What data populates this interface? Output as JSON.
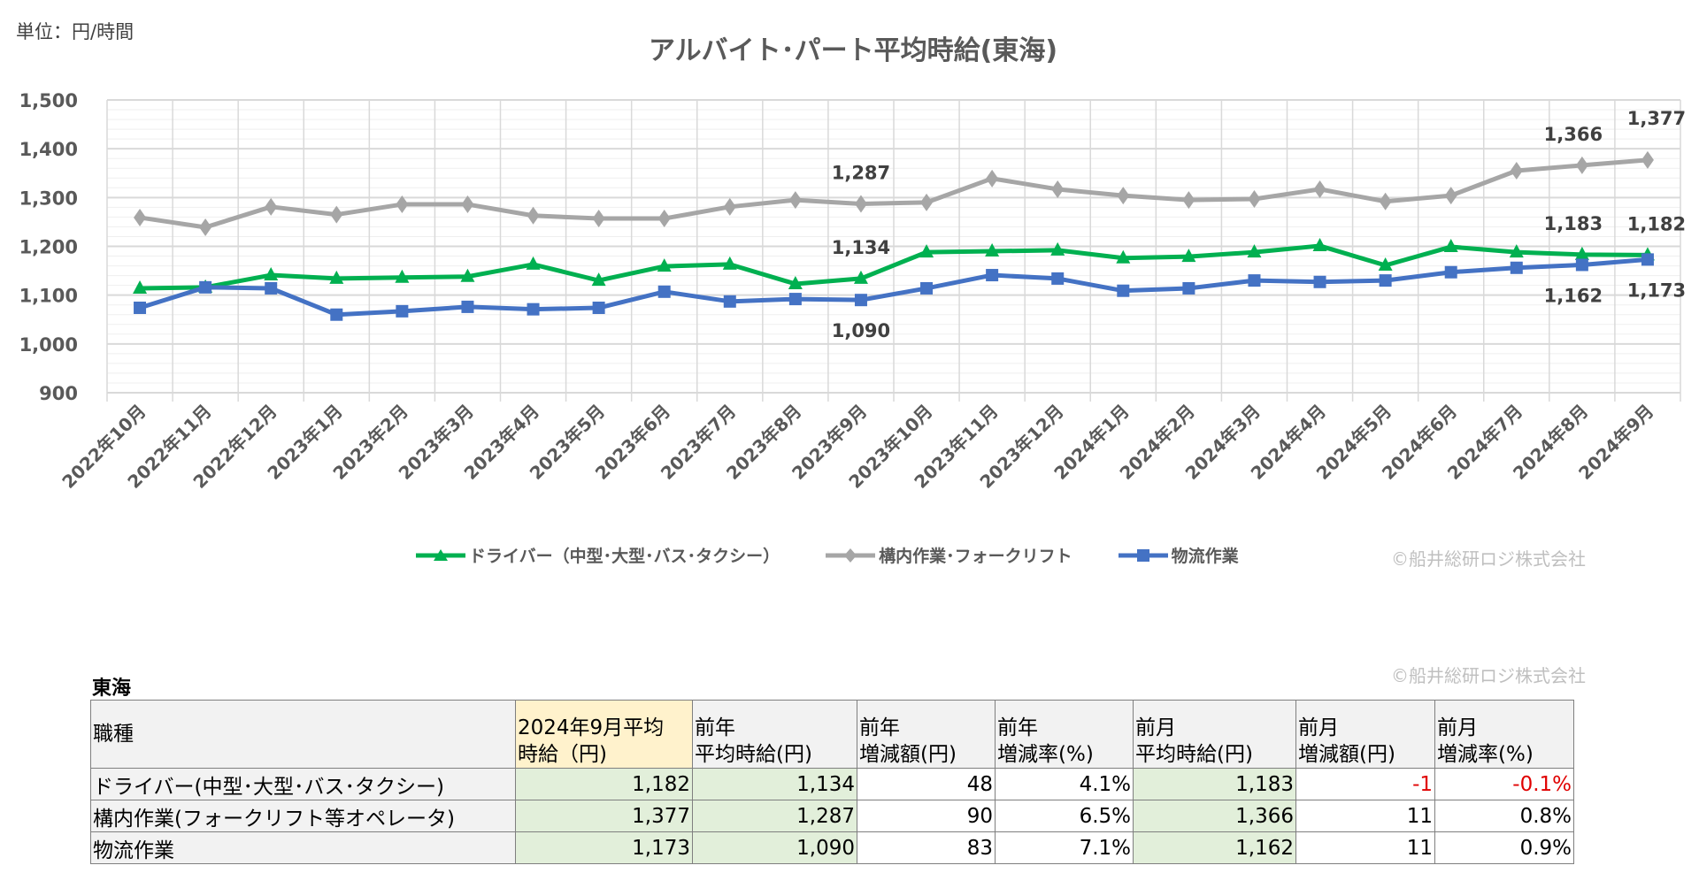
{
  "unit_label": "単位：円/時間",
  "copyright": "©船井総研ロジ株式会社",
  "chart_data": {
    "type": "line",
    "title": "アルバイト･パート平均時給(東海)",
    "ylim": [
      900,
      1500
    ],
    "yticks": [
      "900",
      "1,000",
      "1,100",
      "1,200",
      "1,300",
      "1,400",
      "1,500"
    ],
    "grid": true,
    "legend_position": "bottom",
    "categories": [
      "2022年10月",
      "2022年11月",
      "2022年12月",
      "2023年1月",
      "2023年2月",
      "2023年3月",
      "2023年4月",
      "2023年5月",
      "2023年6月",
      "2023年7月",
      "2023年8月",
      "2023年9月",
      "2023年10月",
      "2023年11月",
      "2023年12月",
      "2024年1月",
      "2024年2月",
      "2024年3月",
      "2024年4月",
      "2024年5月",
      "2024年6月",
      "2024年7月",
      "2024年8月",
      "2024年9月"
    ],
    "series": [
      {
        "name": "ドライバー（中型･大型･バス･タクシー）",
        "color": "#00b050",
        "marker": "triangle",
        "values": [
          1114,
          1116,
          1141,
          1134,
          1136,
          1138,
          1163,
          1130,
          1159,
          1163,
          1123,
          1134,
          1188,
          1190,
          1192,
          1176,
          1179,
          1188,
          1201,
          1161,
          1199,
          1188,
          1183,
          1182
        ],
        "labels": {
          "11": "1,134",
          "22": "1,183",
          "23": "1,182"
        },
        "label_side": "above"
      },
      {
        "name": "構内作業･フォークリフト",
        "color": "#a6a6a6",
        "marker": "diamond",
        "values": [
          1259,
          1239,
          1281,
          1265,
          1286,
          1286,
          1263,
          1257,
          1257,
          1281,
          1295,
          1287,
          1290,
          1339,
          1317,
          1304,
          1295,
          1297,
          1317,
          1292,
          1304,
          1355,
          1366,
          1377
        ],
        "labels": {
          "11": "1,287",
          "22": "1,366",
          "23": "1,377"
        },
        "label_side": "above"
      },
      {
        "name": "物流作業",
        "color": "#4472c4",
        "marker": "square",
        "values": [
          1074,
          1116,
          1114,
          1060,
          1067,
          1076,
          1071,
          1074,
          1107,
          1087,
          1092,
          1090,
          1114,
          1141,
          1134,
          1109,
          1114,
          1130,
          1127,
          1130,
          1147,
          1156,
          1162,
          1173
        ],
        "labels": {
          "11": "1,090",
          "22": "1,162",
          "23": "1,173"
        },
        "label_side": "below"
      }
    ]
  },
  "table": {
    "region": "東海",
    "headers": [
      [
        "職種"
      ],
      [
        "2024年9月平均",
        "時給（円)"
      ],
      [
        "前年",
        "平均時給(円)"
      ],
      [
        "前年",
        "増減額(円)"
      ],
      [
        "前年",
        "増減率(%)"
      ],
      [
        "前月",
        "平均時給(円)"
      ],
      [
        "前月",
        "増減額(円)"
      ],
      [
        "前月",
        "増減率(%)"
      ]
    ],
    "rows": [
      [
        "ドライバー(中型･大型･バス･タクシー)",
        "1,182",
        "1,134",
        "48",
        "4.1%",
        "1,183",
        "-1",
        "-0.1%"
      ],
      [
        "構内作業(フォークリフト等オペレータ)",
        "1,377",
        "1,287",
        "90",
        "6.5%",
        "1,366",
        "11",
        "0.8%"
      ],
      [
        "物流作業",
        "1,173",
        "1,090",
        "83",
        "7.1%",
        "1,162",
        "11",
        "0.9%"
      ]
    ]
  }
}
